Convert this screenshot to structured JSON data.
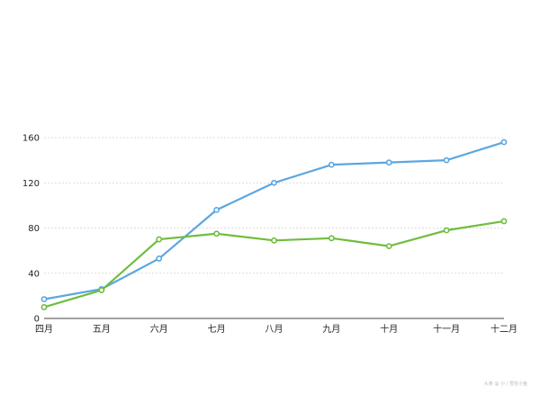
{
  "chart_data": {
    "type": "line",
    "categories": [
      "四月",
      "五月",
      "六月",
      "七月",
      "八月",
      "九月",
      "十月",
      "十一月",
      "十二月"
    ],
    "series": [
      {
        "color": "#5aa7e0",
        "values": [
          17,
          26,
          53,
          96,
          120,
          136,
          138,
          140,
          156
        ]
      },
      {
        "color": "#6fbd3e",
        "values": [
          10,
          25,
          70,
          75,
          69,
          71,
          64,
          78,
          86
        ]
      }
    ],
    "yticks": [
      0,
      40,
      80,
      120,
      160
    ],
    "ylim": [
      0,
      160
    ],
    "grid": true,
    "gridStyle": "dashed"
  },
  "watermark": "头条 @ 小 / 雪花小鱼"
}
